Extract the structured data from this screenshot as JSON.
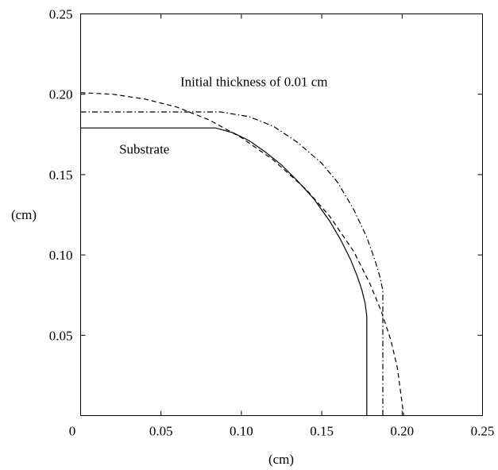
{
  "chart_data": {
    "type": "line",
    "title": "",
    "xlabel": "(cm)",
    "ylabel": "(cm)",
    "xlim": [
      0,
      0.25
    ],
    "ylim": [
      0,
      0.25
    ],
    "grid": false,
    "x_ticks": [
      {
        "value": 0,
        "label": "0"
      },
      {
        "value": 0.05,
        "label": "0.05"
      },
      {
        "value": 0.1,
        "label": "0.10"
      },
      {
        "value": 0.15,
        "label": "0.15"
      },
      {
        "value": 0.2,
        "label": "0.20"
      },
      {
        "value": 0.25,
        "label": "0.25"
      }
    ],
    "y_ticks": [
      {
        "value": 0.05,
        "label": "0.05"
      },
      {
        "value": 0.1,
        "label": "0.10"
      },
      {
        "value": 0.15,
        "label": "0.15"
      },
      {
        "value": 0.2,
        "label": "0.20"
      },
      {
        "value": 0.25,
        "label": "0.25"
      }
    ],
    "annotations": [
      {
        "text": "Initial thickness of 0.01 cm",
        "x": 0.062,
        "y": 0.205
      },
      {
        "text": "Substrate",
        "x": 0.024,
        "y": 0.163
      }
    ],
    "series": [
      {
        "line_style": "solid",
        "x": [
          0,
          0.084,
          0.095,
          0.105,
          0.115,
          0.125,
          0.135,
          0.145,
          0.155,
          0.162,
          0.168,
          0.172,
          0.175,
          0.177,
          0.178,
          0.178
        ],
        "y": [
          0.179,
          0.179,
          0.176,
          0.171,
          0.164,
          0.156,
          0.146,
          0.135,
          0.121,
          0.109,
          0.097,
          0.087,
          0.078,
          0.07,
          0.062,
          0
        ]
      },
      {
        "line_style": "dash-dot",
        "x": [
          0,
          0.087,
          0.105,
          0.12,
          0.135,
          0.15,
          0.16,
          0.17,
          0.178,
          0.183,
          0.186,
          0.188,
          0.188
        ],
        "y": [
          0.189,
          0.189,
          0.186,
          0.18,
          0.17,
          0.157,
          0.145,
          0.128,
          0.111,
          0.097,
          0.087,
          0.078,
          0
        ]
      },
      {
        "line_style": "dashed",
        "x": [
          0,
          0.02,
          0.04,
          0.06,
          0.08,
          0.1,
          0.12,
          0.14,
          0.155,
          0.17,
          0.18,
          0.187,
          0.193,
          0.197,
          0.199,
          0.201
        ],
        "y": [
          0.201,
          0.2,
          0.197,
          0.192,
          0.184,
          0.173,
          0.159,
          0.141,
          0.124,
          0.102,
          0.082,
          0.065,
          0.047,
          0.03,
          0.015,
          0
        ]
      }
    ]
  }
}
